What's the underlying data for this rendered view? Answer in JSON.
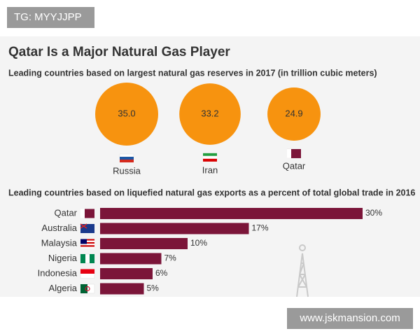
{
  "header": {
    "badge": "TG: MYYJJPP",
    "title": "Qatar Is a Major Natural Gas Player"
  },
  "footer": {
    "watermark": "www.jskmansion.com"
  },
  "chart_data": [
    {
      "type": "circle",
      "subtitle": "Leading countries based on largest natural gas reserves in 2017 (in trillion cubic meters)",
      "categories": [
        "Russia",
        "Iran",
        "Qatar"
      ],
      "values": [
        35.0,
        33.2,
        24.9
      ],
      "value_labels": [
        "35.0",
        "33.2",
        "24.9"
      ],
      "color": "#f7930f"
    },
    {
      "type": "bar",
      "orientation": "horizontal",
      "subtitle": "Leading countries based on liquefied natural gas exports as a percent of total global trade in 2016",
      "categories": [
        "Qatar",
        "Australia",
        "Malaysia",
        "Nigeria",
        "Indonesia",
        "Algeria"
      ],
      "values": [
        30,
        17,
        10,
        7,
        6,
        5
      ],
      "value_labels": [
        "30%",
        "17%",
        "10%",
        "7%",
        "6%",
        "5%"
      ],
      "color": "#7b1539"
    }
  ]
}
